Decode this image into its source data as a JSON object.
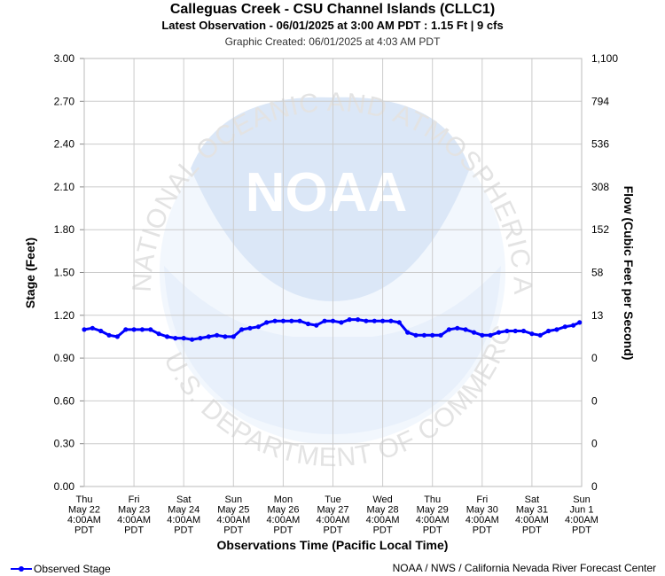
{
  "header": {
    "title": "Calleguas Creek - CSU Channel Islands (CLLC1)",
    "latest": "Latest Observation - 06/01/2025 at 3:00 AM PDT : 1.15 Ft | 9 cfs",
    "created": "Graphic Created: 06/01/2025 at 4:03 AM PDT"
  },
  "footer": {
    "legend_label": "Observed Stage",
    "credit": "NOAA / NWS / California Nevada River Forecast Center"
  },
  "watermark": {
    "logo_text": "NOAA",
    "ring_top": "NATIONAL OCEANIC AND ATMOSPHERIC ADMINISTRATION",
    "ring_bottom": "U.S. DEPARTMENT OF COMMERCE"
  },
  "colors": {
    "series": "#0000ff",
    "grid": "#cccccc",
    "watermark": "#dbe7f7"
  },
  "chart_data": {
    "type": "line",
    "xlabel": "Observations Time (Pacific Local Time)",
    "ylabel": "Stage (Feet)",
    "y2label": "Flow (Cubic Feet per Second)",
    "ylim": [
      0,
      3.0
    ],
    "grid": true,
    "legend_position": "bottom-left",
    "yticks": [
      "0.00",
      "0.30",
      "0.60",
      "0.90",
      "1.20",
      "1.50",
      "1.80",
      "2.10",
      "2.40",
      "2.70",
      "3.00"
    ],
    "y2ticks": [
      "0",
      "0",
      "0",
      "0",
      "13",
      "58",
      "152",
      "308",
      "536",
      "794",
      "1,100"
    ],
    "xticks": [
      [
        "Thu",
        "May 22",
        "4:00AM",
        "PDT"
      ],
      [
        "Fri",
        "May 23",
        "4:00AM",
        "PDT"
      ],
      [
        "Sat",
        "May 24",
        "4:00AM",
        "PDT"
      ],
      [
        "Sun",
        "May 25",
        "4:00AM",
        "PDT"
      ],
      [
        "Mon",
        "May 26",
        "4:00AM",
        "PDT"
      ],
      [
        "Tue",
        "May 27",
        "4:00AM",
        "PDT"
      ],
      [
        "Wed",
        "May 28",
        "4:00AM",
        "PDT"
      ],
      [
        "Thu",
        "May 29",
        "4:00AM",
        "PDT"
      ],
      [
        "Fri",
        "May 30",
        "4:00AM",
        "PDT"
      ],
      [
        "Sat",
        "May 31",
        "4:00AM",
        "PDT"
      ],
      [
        "Sun",
        "Jun 1",
        "4:00AM",
        "PDT"
      ]
    ],
    "x_range": [
      "2025-05-22T04:00",
      "2025-06-01T04:00"
    ],
    "series": [
      {
        "name": "Observed Stage",
        "x": [
          "2025-05-22T04:00",
          "2025-05-22T08:00",
          "2025-05-22T12:00",
          "2025-05-22T16:00",
          "2025-05-22T20:00",
          "2025-05-23T00:00",
          "2025-05-23T04:00",
          "2025-05-23T08:00",
          "2025-05-23T12:00",
          "2025-05-23T16:00",
          "2025-05-23T20:00",
          "2025-05-24T00:00",
          "2025-05-24T04:00",
          "2025-05-24T08:00",
          "2025-05-24T12:00",
          "2025-05-24T16:00",
          "2025-05-24T20:00",
          "2025-05-25T00:00",
          "2025-05-25T04:00",
          "2025-05-25T08:00",
          "2025-05-25T12:00",
          "2025-05-25T16:00",
          "2025-05-25T20:00",
          "2025-05-26T00:00",
          "2025-05-26T04:00",
          "2025-05-26T08:00",
          "2025-05-26T12:00",
          "2025-05-26T16:00",
          "2025-05-26T20:00",
          "2025-05-27T00:00",
          "2025-05-27T04:00",
          "2025-05-27T08:00",
          "2025-05-27T12:00",
          "2025-05-27T16:00",
          "2025-05-27T20:00",
          "2025-05-28T00:00",
          "2025-05-28T04:00",
          "2025-05-28T08:00",
          "2025-05-28T12:00",
          "2025-05-28T16:00",
          "2025-05-28T20:00",
          "2025-05-29T00:00",
          "2025-05-29T04:00",
          "2025-05-29T08:00",
          "2025-05-29T12:00",
          "2025-05-29T16:00",
          "2025-05-29T20:00",
          "2025-05-30T00:00",
          "2025-05-30T04:00",
          "2025-05-30T08:00",
          "2025-05-30T12:00",
          "2025-05-30T16:00",
          "2025-05-30T20:00",
          "2025-05-31T00:00",
          "2025-05-31T04:00",
          "2025-05-31T08:00",
          "2025-05-31T12:00",
          "2025-05-31T16:00",
          "2025-05-31T20:00",
          "2025-06-01T00:00",
          "2025-06-01T03:00"
        ],
        "values": [
          1.1,
          1.11,
          1.09,
          1.06,
          1.05,
          1.1,
          1.1,
          1.1,
          1.1,
          1.07,
          1.05,
          1.04,
          1.04,
          1.03,
          1.04,
          1.05,
          1.06,
          1.05,
          1.05,
          1.1,
          1.11,
          1.12,
          1.15,
          1.16,
          1.16,
          1.16,
          1.16,
          1.14,
          1.13,
          1.16,
          1.16,
          1.15,
          1.17,
          1.17,
          1.16,
          1.16,
          1.16,
          1.16,
          1.15,
          1.08,
          1.06,
          1.06,
          1.06,
          1.06,
          1.1,
          1.11,
          1.1,
          1.08,
          1.06,
          1.06,
          1.08,
          1.09,
          1.09,
          1.09,
          1.07,
          1.06,
          1.09,
          1.1,
          1.12,
          1.13,
          1.15
        ]
      }
    ]
  }
}
